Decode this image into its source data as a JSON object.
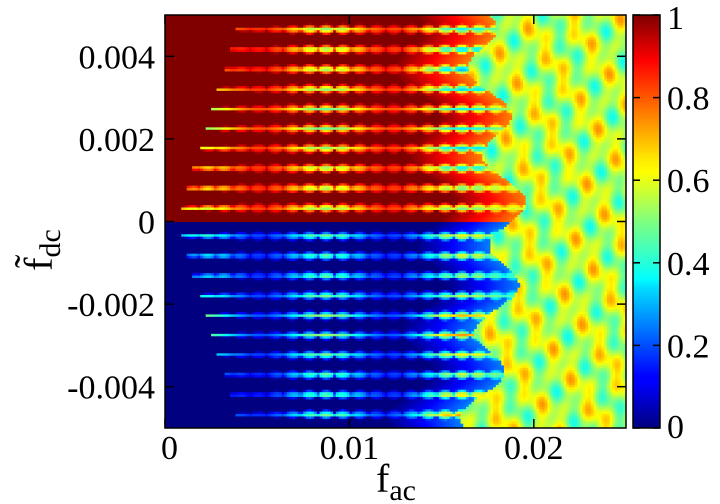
{
  "chart_data": {
    "type": "heatmap",
    "title": "",
    "xlabel": {
      "main": "f",
      "sub": "ac"
    },
    "ylabel": {
      "main": "f̃",
      "sub": "dc"
    },
    "xlim": [
      0,
      0.025
    ],
    "ylim": [
      -0.005,
      0.005
    ],
    "x_ticks": [
      {
        "value": 0,
        "label": "0"
      },
      {
        "value": 0.01,
        "label": "0.01"
      },
      {
        "value": 0.02,
        "label": "0.02"
      }
    ],
    "y_ticks": [
      {
        "value": 0.004,
        "label": "0.004"
      },
      {
        "value": 0.002,
        "label": "0.002"
      },
      {
        "value": 0,
        "label": "0"
      },
      {
        "value": -0.002,
        "label": "-0.002"
      },
      {
        "value": -0.004,
        "label": "-0.004"
      }
    ],
    "colorbar": {
      "colormap": "jet",
      "range": [
        0,
        1
      ],
      "ticks": [
        {
          "value": 0,
          "label": "0"
        },
        {
          "value": 0.2,
          "label": "0.2"
        },
        {
          "value": 0.4,
          "label": "0.4"
        },
        {
          "value": 0.6,
          "label": "0.6"
        },
        {
          "value": 0.8,
          "label": "0.8"
        },
        {
          "value": 1,
          "label": "1"
        }
      ]
    },
    "regions": [
      {
        "f_dc_range": [
          0,
          0.005
        ],
        "f_ac_range": [
          0,
          0.016
        ],
        "value": 1.0,
        "pattern": "locked steps with periodic tongues"
      },
      {
        "f_dc_range": [
          -0.005,
          0
        ],
        "f_ac_range": [
          0,
          0.016
        ],
        "value": 0.0,
        "pattern": "locked steps with periodic tongues"
      },
      {
        "f_dc_range": [
          -0.005,
          0.005
        ],
        "f_ac_range": [
          0.018,
          0.025
        ],
        "value": 0.55,
        "pattern": "disordered"
      }
    ]
  }
}
